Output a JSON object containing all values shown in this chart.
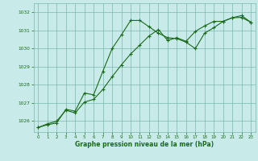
{
  "bg_color": "#c8eae8",
  "grid_color": "#7ab8b0",
  "line_color": "#1a6b1a",
  "xlabel": "Graphe pression niveau de la mer (hPa)",
  "xlabel_fontsize": 5.5,
  "xlim": [
    -0.5,
    23.5
  ],
  "ylim": [
    1025.4,
    1032.5
  ],
  "yticks": [
    1026,
    1027,
    1028,
    1029,
    1030,
    1031,
    1032
  ],
  "xticks": [
    0,
    1,
    2,
    3,
    4,
    5,
    6,
    7,
    8,
    9,
    10,
    11,
    12,
    13,
    14,
    15,
    16,
    17,
    18,
    19,
    20,
    21,
    22,
    23
  ],
  "series1_x": [
    0,
    1,
    2,
    3,
    4,
    5,
    6,
    7,
    8,
    9,
    10,
    11,
    12,
    13,
    14,
    15,
    16,
    17,
    18,
    19,
    20,
    21,
    22,
    23
  ],
  "series1_y": [
    1025.65,
    1025.8,
    1025.9,
    1026.65,
    1026.55,
    1027.55,
    1027.45,
    1028.75,
    1030.0,
    1030.75,
    1031.55,
    1031.55,
    1031.2,
    1030.85,
    1030.6,
    1030.55,
    1030.35,
    1030.0,
    1030.85,
    1031.15,
    1031.5,
    1031.7,
    1031.72,
    1031.45
  ],
  "series2_x": [
    0,
    1,
    2,
    3,
    4,
    5,
    6,
    7,
    8,
    9,
    10,
    11,
    12,
    13,
    14,
    15,
    16,
    17,
    18,
    19,
    20,
    21,
    22,
    23
  ],
  "series2_y": [
    1025.65,
    1025.85,
    1026.0,
    1026.6,
    1026.45,
    1027.05,
    1027.2,
    1027.75,
    1028.45,
    1029.1,
    1029.7,
    1030.2,
    1030.7,
    1031.05,
    1030.45,
    1030.6,
    1030.4,
    1030.95,
    1031.25,
    1031.5,
    1031.5,
    1031.7,
    1031.82,
    1031.45
  ]
}
